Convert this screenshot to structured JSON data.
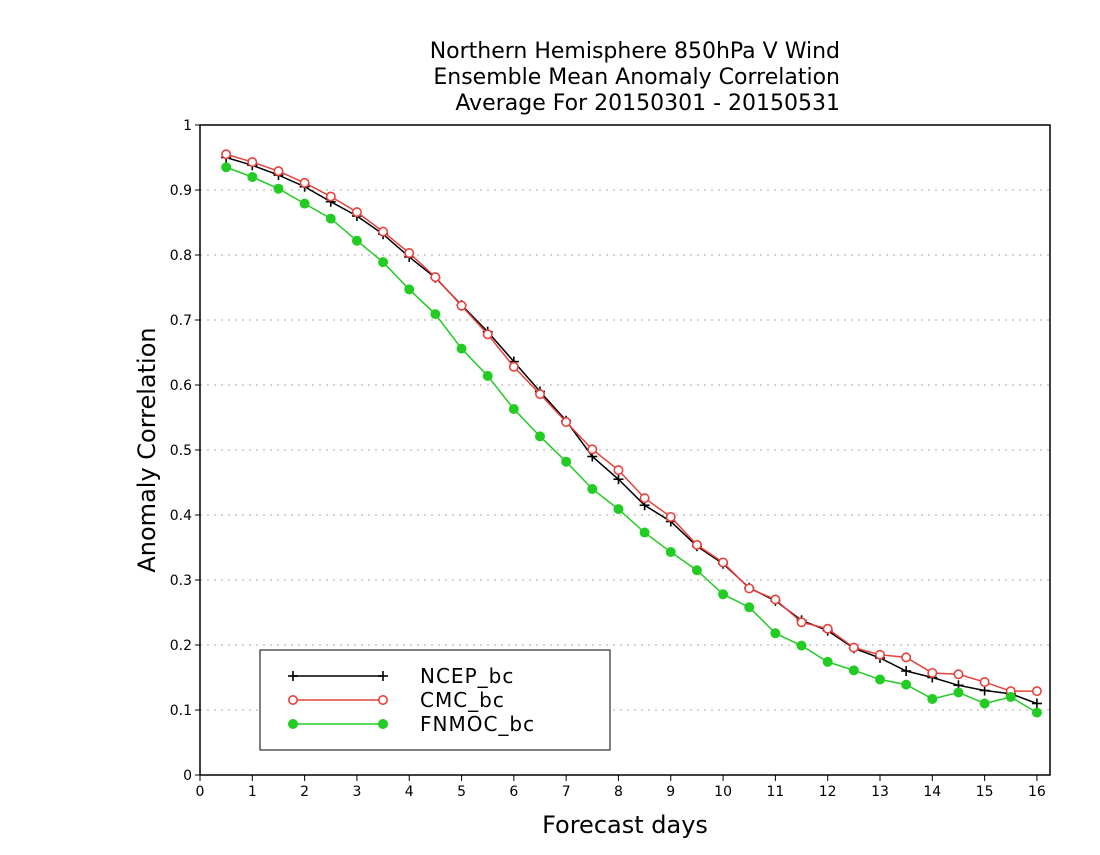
{
  "chart_data": {
    "type": "line",
    "title_lines": [
      "Northern Hemisphere 850hPa V Wind",
      "Ensemble Mean Anomaly Correlation",
      "Average For 20150301 - 20150531"
    ],
    "xlabel": "Forecast days",
    "ylabel": "Anomaly Correlation",
    "xlim": [
      0,
      16.25
    ],
    "ylim": [
      0,
      1
    ],
    "xticks": [
      0,
      1,
      2,
      3,
      4,
      5,
      6,
      7,
      8,
      9,
      10,
      11,
      12,
      13,
      14,
      15,
      16
    ],
    "yticks": [
      0,
      0.1,
      0.2,
      0.3,
      0.4,
      0.5,
      0.6,
      0.7,
      0.8,
      0.9,
      1
    ],
    "ytick_labels": [
      "0",
      "0.1",
      "0.2",
      "0.3",
      "0.4",
      "0.5",
      "0.6",
      "0.7",
      "0.8",
      "0.9",
      "1"
    ],
    "grid": "horizontal dotted",
    "legend_position": "bottom-left",
    "x": [
      0.5,
      1,
      1.5,
      2,
      2.5,
      3,
      3.5,
      4,
      4.5,
      5,
      5.5,
      6,
      6.5,
      7,
      7.5,
      8,
      8.5,
      9,
      9.5,
      10,
      10.5,
      11,
      11.5,
      12,
      12.5,
      13,
      13.5,
      14,
      14.5,
      15,
      15.5,
      16
    ],
    "series": [
      {
        "name": "NCEP_bc",
        "color": "#000000",
        "marker": "plus",
        "values": [
          0.95,
          0.938,
          0.923,
          0.905,
          0.882,
          0.86,
          0.832,
          0.797,
          0.765,
          0.723,
          0.682,
          0.636,
          0.59,
          0.545,
          0.49,
          0.455,
          0.415,
          0.39,
          0.352,
          0.325,
          0.288,
          0.268,
          0.238,
          0.222,
          0.195,
          0.18,
          0.16,
          0.15,
          0.138,
          0.13,
          0.125,
          0.11
        ]
      },
      {
        "name": "CMC_bc",
        "color": "#e8403a",
        "marker": "open-circle",
        "values": [
          0.955,
          0.943,
          0.929,
          0.911,
          0.89,
          0.866,
          0.836,
          0.803,
          0.766,
          0.722,
          0.678,
          0.628,
          0.586,
          0.543,
          0.501,
          0.469,
          0.426,
          0.397,
          0.354,
          0.327,
          0.287,
          0.27,
          0.235,
          0.225,
          0.196,
          0.185,
          0.181,
          0.157,
          0.155,
          0.143,
          0.129,
          0.129
        ]
      },
      {
        "name": "FNMOC_bc",
        "color": "#22cc22",
        "marker": "filled-circle",
        "values": [
          0.935,
          0.92,
          0.902,
          0.879,
          0.856,
          0.822,
          0.789,
          0.747,
          0.709,
          0.656,
          0.614,
          0.563,
          0.521,
          0.482,
          0.44,
          0.409,
          0.373,
          0.343,
          0.315,
          0.278,
          0.258,
          0.218,
          0.199,
          0.174,
          0.161,
          0.147,
          0.139,
          0.117,
          0.127,
          0.11,
          0.12,
          0.096
        ]
      }
    ]
  }
}
